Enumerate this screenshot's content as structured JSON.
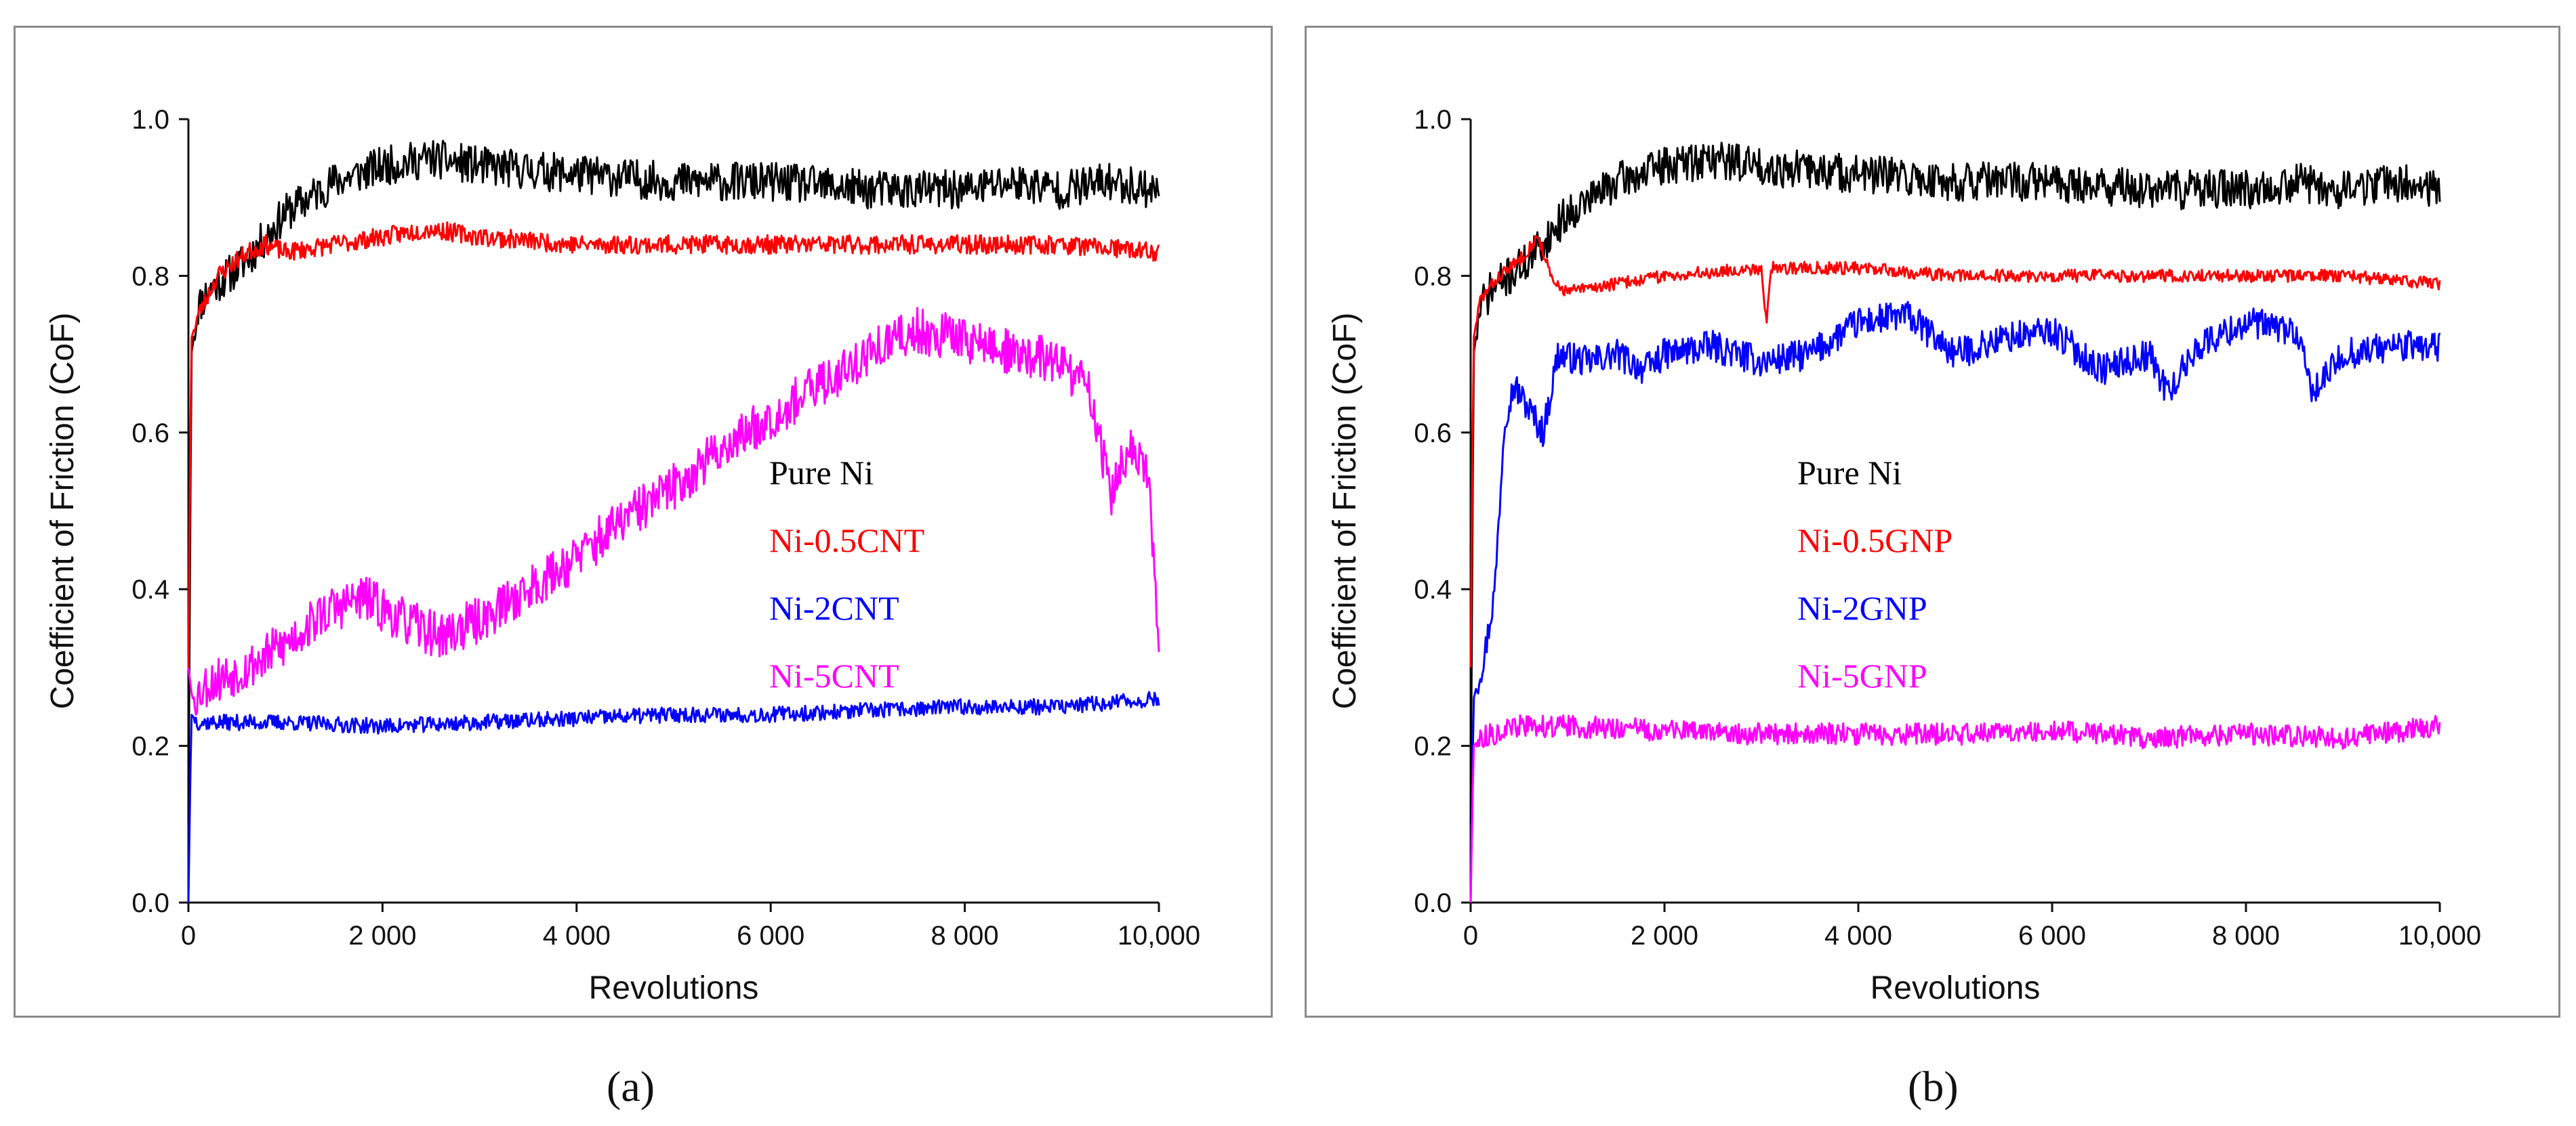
{
  "chart_data": [
    {
      "id": "a",
      "type": "line",
      "panel_label": "(a)",
      "title": "",
      "xlabel": "Revolutions",
      "ylabel": "Coefficient of Friction (CoF)",
      "xlim": [
        0,
        10000
      ],
      "ylim": [
        0.0,
        1.0
      ],
      "xticks": [
        {
          "value": 0,
          "label": "0"
        },
        {
          "value": 2000,
          "label": "2 000"
        },
        {
          "value": 4000,
          "label": "4 000"
        },
        {
          "value": 6000,
          "label": "6 000"
        },
        {
          "value": 8000,
          "label": "8 000"
        },
        {
          "value": 10000,
          "label": "10,000"
        }
      ],
      "yticks": [
        {
          "value": 0.0,
          "label": "0.0"
        },
        {
          "value": 0.2,
          "label": "0.2"
        },
        {
          "value": 0.4,
          "label": "0.4"
        },
        {
          "value": 0.6,
          "label": "0.6"
        },
        {
          "value": 0.8,
          "label": "0.8"
        },
        {
          "value": 1.0,
          "label": "1.0"
        }
      ],
      "legend_position": "center-right",
      "series": [
        {
          "name": "Pure Ni",
          "color": "#000000",
          "noise": 0.025,
          "seed": 11,
          "x": [
            0,
            30,
            100,
            200,
            400,
            600,
            800,
            1000,
            1500,
            2000,
            2500,
            3000,
            4000,
            5000,
            6000,
            7000,
            8000,
            8500,
            9000,
            9500,
            10000
          ],
          "y": [
            0.1,
            0.7,
            0.76,
            0.78,
            0.8,
            0.82,
            0.85,
            0.88,
            0.92,
            0.94,
            0.95,
            0.94,
            0.93,
            0.92,
            0.92,
            0.91,
            0.91,
            0.92,
            0.91,
            0.92,
            0.91
          ]
        },
        {
          "name": "Ni-0.5CNT",
          "color": "#ff0000",
          "noise": 0.012,
          "seed": 23,
          "x": [
            0,
            30,
            100,
            300,
            600,
            800,
            1000,
            1500,
            2000,
            2500,
            3000,
            4000,
            5000,
            6000,
            7000,
            8000,
            9000,
            10000
          ],
          "y": [
            0.3,
            0.72,
            0.75,
            0.8,
            0.83,
            0.84,
            0.83,
            0.84,
            0.85,
            0.86,
            0.85,
            0.84,
            0.84,
            0.84,
            0.84,
            0.84,
            0.84,
            0.83
          ]
        },
        {
          "name": "Ni-2CNT",
          "color": "#0000ff",
          "noise": 0.01,
          "seed": 37,
          "x": [
            0,
            30,
            100,
            500,
            1000,
            2000,
            3000,
            4000,
            5000,
            6000,
            7000,
            8000,
            9000,
            10000
          ],
          "y": [
            0.0,
            0.24,
            0.23,
            0.23,
            0.23,
            0.225,
            0.23,
            0.235,
            0.24,
            0.24,
            0.245,
            0.25,
            0.25,
            0.26
          ]
        },
        {
          "name": "Ni-5CNT",
          "color": "#ff00ff",
          "noise": 0.03,
          "seed": 53,
          "x": [
            0,
            40,
            200,
            600,
            1000,
            1400,
            1800,
            2200,
            2600,
            3000,
            3500,
            4000,
            4500,
            5000,
            5500,
            6000,
            6500,
            7000,
            7500,
            8000,
            8500,
            9000,
            9300,
            9500,
            9700,
            9900,
            10000
          ],
          "y": [
            0.3,
            0.26,
            0.28,
            0.3,
            0.33,
            0.37,
            0.39,
            0.36,
            0.34,
            0.36,
            0.4,
            0.44,
            0.49,
            0.53,
            0.58,
            0.62,
            0.66,
            0.7,
            0.73,
            0.72,
            0.7,
            0.69,
            0.65,
            0.52,
            0.58,
            0.54,
            0.3
          ]
        }
      ]
    },
    {
      "id": "b",
      "type": "line",
      "panel_label": "(b)",
      "title": "",
      "xlabel": "Revolutions",
      "ylabel": "Coefficient of Friction (CoF)",
      "xlim": [
        0,
        10000
      ],
      "ylim": [
        0.0,
        1.0
      ],
      "xticks": [
        {
          "value": 0,
          "label": "0"
        },
        {
          "value": 2000,
          "label": "2 000"
        },
        {
          "value": 4000,
          "label": "4 000"
        },
        {
          "value": 6000,
          "label": "6 000"
        },
        {
          "value": 8000,
          "label": "8 000"
        },
        {
          "value": 10000,
          "label": "10,000"
        }
      ],
      "yticks": [
        {
          "value": 0.0,
          "label": "0.0"
        },
        {
          "value": 0.2,
          "label": "0.2"
        },
        {
          "value": 0.4,
          "label": "0.4"
        },
        {
          "value": 0.6,
          "label": "0.6"
        },
        {
          "value": 0.8,
          "label": "0.8"
        },
        {
          "value": 1.0,
          "label": "1.0"
        }
      ],
      "legend_position": "center",
      "series": [
        {
          "name": "Pure Ni",
          "color": "#000000",
          "noise": 0.025,
          "seed": 71,
          "x": [
            0,
            30,
            100,
            200,
            400,
            600,
            800,
            1000,
            1500,
            2000,
            2500,
            3000,
            4000,
            5000,
            6000,
            7000,
            8000,
            8500,
            9000,
            9500,
            10000
          ],
          "y": [
            0.1,
            0.7,
            0.76,
            0.78,
            0.8,
            0.82,
            0.85,
            0.88,
            0.92,
            0.94,
            0.95,
            0.94,
            0.93,
            0.92,
            0.92,
            0.91,
            0.91,
            0.92,
            0.91,
            0.92,
            0.91
          ]
        },
        {
          "name": "Ni-0.5GNP",
          "color": "#ff0000",
          "noise": 0.008,
          "seed": 83,
          "x": [
            0,
            30,
            100,
            300,
            500,
            700,
            850,
            1000,
            1500,
            2000,
            3000,
            3050,
            3100,
            4000,
            5000,
            6000,
            7000,
            8000,
            9000,
            10000
          ],
          "y": [
            0.3,
            0.72,
            0.77,
            0.8,
            0.82,
            0.85,
            0.79,
            0.78,
            0.79,
            0.8,
            0.81,
            0.74,
            0.81,
            0.81,
            0.8,
            0.8,
            0.8,
            0.8,
            0.8,
            0.79
          ]
        },
        {
          "name": "Ni-2GNP",
          "color": "#0000ff",
          "noise": 0.02,
          "seed": 97,
          "x": [
            0,
            30,
            150,
            250,
            350,
            450,
            600,
            750,
            900,
            1200,
            1500,
            1800,
            2000,
            2500,
            3000,
            3500,
            4000,
            4500,
            5000,
            5500,
            6000,
            6500,
            7000,
            7200,
            7500,
            8000,
            8500,
            8700,
            9000,
            9500,
            10000
          ],
          "y": [
            0.0,
            0.26,
            0.32,
            0.4,
            0.62,
            0.66,
            0.63,
            0.6,
            0.7,
            0.69,
            0.7,
            0.68,
            0.7,
            0.71,
            0.69,
            0.7,
            0.74,
            0.75,
            0.7,
            0.72,
            0.73,
            0.68,
            0.7,
            0.65,
            0.71,
            0.74,
            0.73,
            0.65,
            0.7,
            0.71,
            0.71
          ]
        },
        {
          "name": "Ni-5GNP",
          "color": "#ff00ff",
          "noise": 0.014,
          "seed": 113,
          "x": [
            0,
            30,
            100,
            500,
            1000,
            2000,
            3000,
            4000,
            5000,
            6000,
            7000,
            8000,
            9000,
            10000
          ],
          "y": [
            0.0,
            0.2,
            0.21,
            0.225,
            0.225,
            0.22,
            0.215,
            0.215,
            0.215,
            0.22,
            0.21,
            0.215,
            0.21,
            0.225
          ]
        }
      ]
    }
  ]
}
